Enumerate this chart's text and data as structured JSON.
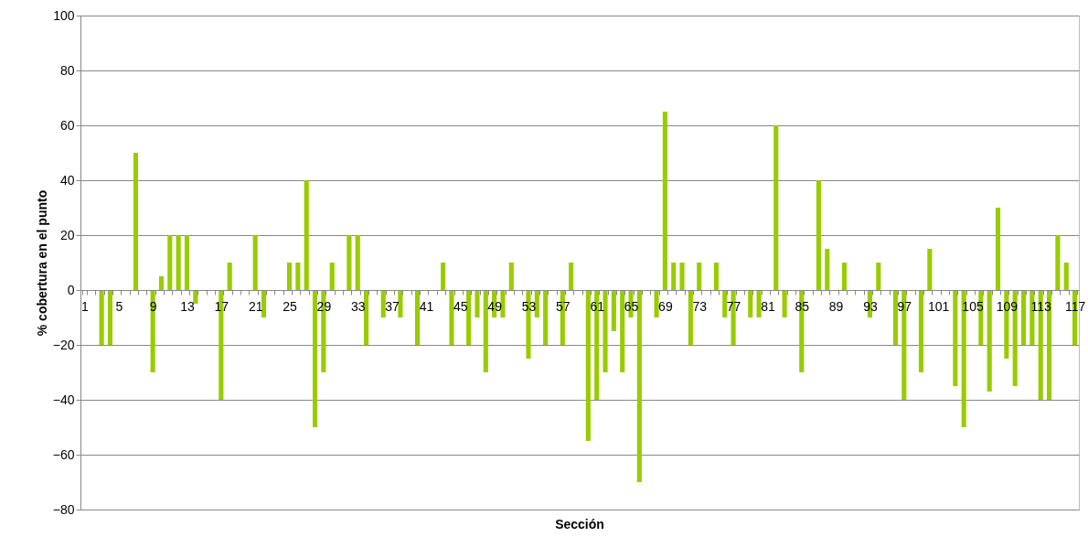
{
  "chart_data": {
    "type": "bar",
    "xlabel": "Sección",
    "ylabel": "% cobertura en el punto",
    "categories": [
      "1",
      null,
      null,
      null,
      "5",
      null,
      null,
      null,
      "9",
      null,
      null,
      null,
      "13",
      null,
      null,
      null,
      "17",
      null,
      null,
      null,
      "21",
      null,
      null,
      null,
      "25",
      null,
      null,
      null,
      "29",
      null,
      null,
      null,
      "33",
      null,
      null,
      null,
      "37",
      null,
      null,
      null,
      "41",
      null,
      null,
      null,
      "45",
      null,
      null,
      null,
      "49",
      null,
      null,
      null,
      "53",
      null,
      null,
      null,
      "57",
      null,
      null,
      null,
      "61",
      null,
      null,
      null,
      "65",
      null,
      null,
      null,
      "69",
      null,
      null,
      null,
      "73",
      null,
      null,
      null,
      "77",
      null,
      null,
      null,
      "81",
      null,
      null,
      null,
      "85",
      null,
      null,
      null,
      "89",
      null,
      null,
      null,
      "93",
      null,
      null,
      null,
      "97",
      null,
      null,
      null,
      "101",
      null,
      null,
      null,
      "105",
      null,
      null,
      null,
      "109",
      null,
      null,
      null,
      "113",
      null,
      null,
      null,
      "117"
    ],
    "values": [
      0,
      0,
      -20,
      -20,
      0,
      0,
      50,
      0,
      -30,
      5,
      20,
      20,
      20,
      -5,
      0,
      0,
      -40,
      10,
      0,
      0,
      20,
      -10,
      0,
      0,
      10,
      10,
      40,
      -50,
      -30,
      10,
      0,
      20,
      20,
      -20,
      0,
      -10,
      0,
      -10,
      0,
      -20,
      0,
      0,
      10,
      -20,
      0,
      -20,
      -10,
      -30,
      -10,
      -10,
      10,
      0,
      -25,
      -10,
      -20,
      0,
      -20,
      10,
      0,
      -55,
      -40,
      -30,
      -15,
      -30,
      -10,
      -70,
      0,
      -10,
      65,
      10,
      10,
      -20,
      10,
      0,
      10,
      -10,
      -20,
      0,
      -10,
      -10,
      0,
      60,
      -10,
      0,
      -30,
      0,
      40,
      15,
      0,
      10,
      0,
      0,
      -10,
      10,
      0,
      -20,
      -40,
      0,
      -30,
      15,
      0,
      0,
      -35,
      -50,
      0,
      -20,
      -37,
      30,
      -25,
      -35,
      -20,
      -20,
      -40,
      -40,
      20,
      10,
      -20
    ],
    "color": "#99cc00",
    "ylim": [
      -80,
      100
    ],
    "yticks": [
      -80,
      -60,
      -40,
      -20,
      0,
      20,
      40,
      60,
      80,
      100
    ],
    "grid": "y"
  }
}
